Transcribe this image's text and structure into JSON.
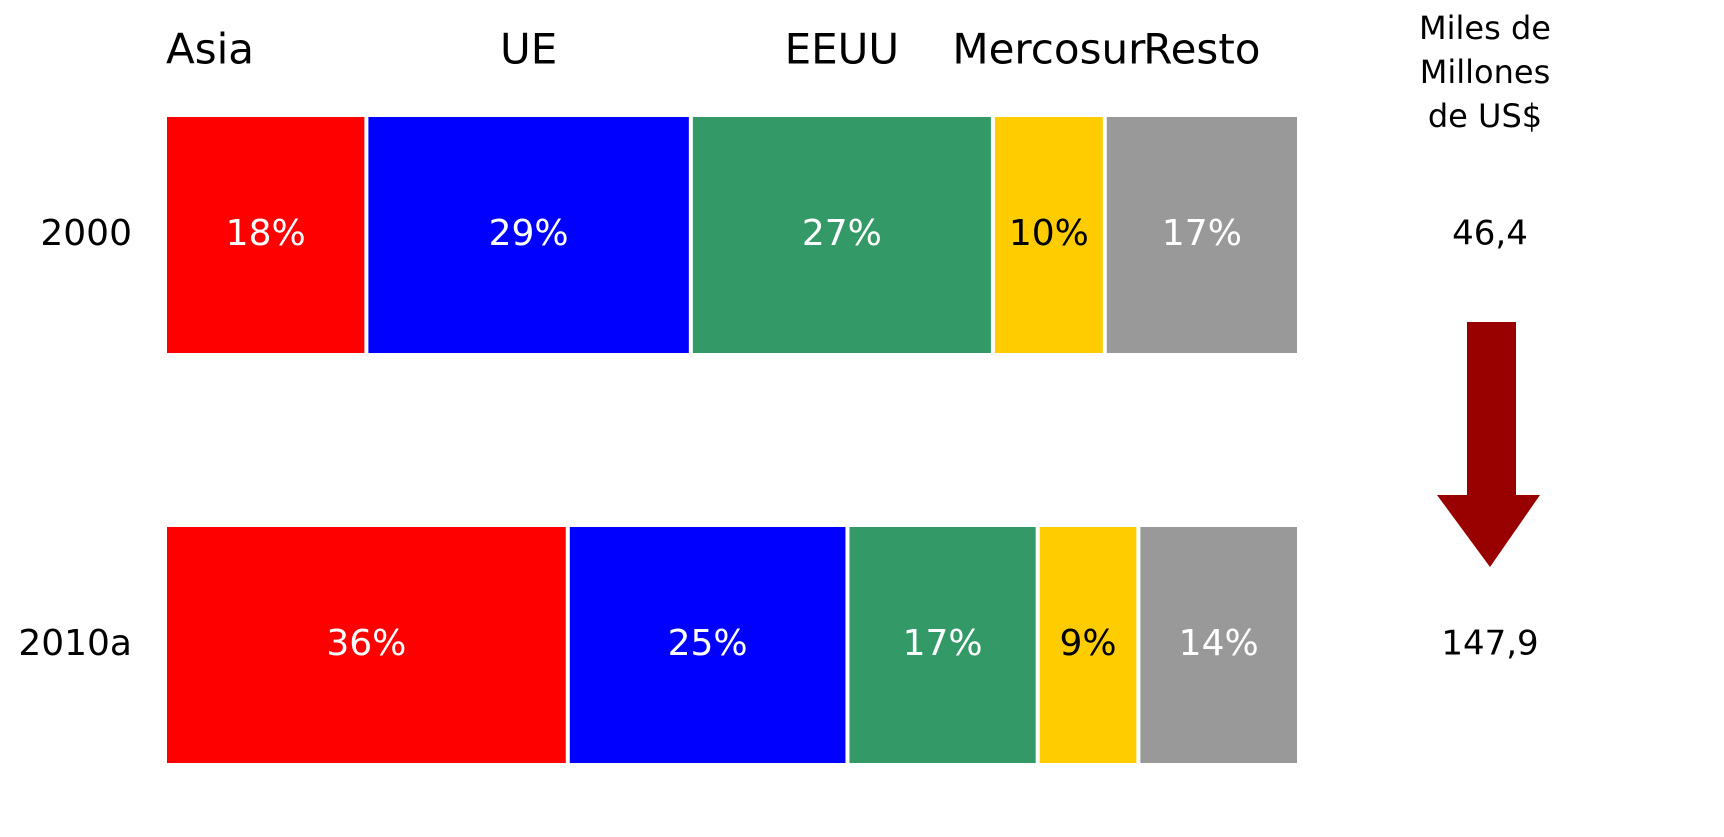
{
  "chart_data": {
    "type": "stacked_bar_100",
    "categories": [
      "2000",
      "2010a"
    ],
    "series": [
      {
        "name": "Asia",
        "color": "#ff0000",
        "label_color": "#ffffff",
        "values": [
          18,
          36
        ],
        "value_labels": [
          "18%",
          "36%"
        ]
      },
      {
        "name": "UE",
        "color": "#0000ff",
        "label_color": "#ffffff",
        "values": [
          29,
          25
        ],
        "value_labels": [
          "29%",
          "25%"
        ]
      },
      {
        "name": "EEUU",
        "color": "#339966",
        "label_color": "#ffffff",
        "values": [
          27,
          17
        ],
        "value_labels": [
          "27%",
          "17%"
        ]
      },
      {
        "name": "Mercosur",
        "color": "#ffcc00",
        "label_color": "#000000",
        "values": [
          10,
          9
        ],
        "value_labels": [
          "10%",
          "9%"
        ]
      },
      {
        "name": "Resto",
        "color": "#999999",
        "label_color": "#ffffff",
        "values": [
          17,
          14
        ],
        "value_labels": [
          "17%",
          "14%"
        ]
      }
    ],
    "totals_title": [
      "Miles de",
      "Millones",
      "de US$"
    ],
    "totals": [
      46.4,
      147.9
    ],
    "totals_labels": [
      "46,4",
      "147,9"
    ]
  }
}
